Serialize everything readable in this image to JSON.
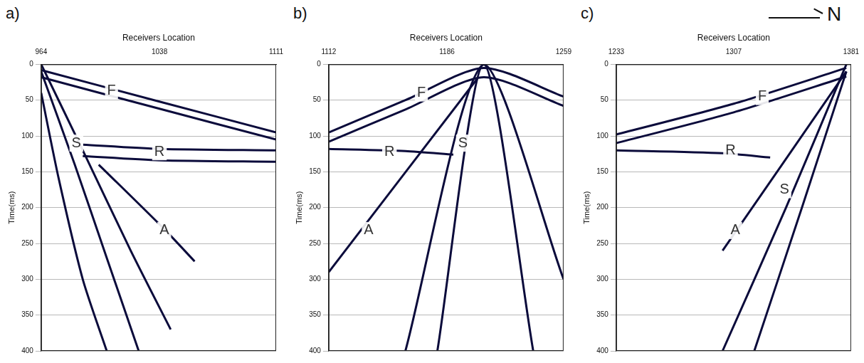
{
  "compass": {
    "label": "N"
  },
  "chart_data": [
    {
      "type": "line",
      "panel_label": "a)",
      "x_label": "Receivers Location",
      "y_label": "Time(ms)",
      "xlim": [
        964,
        1111
      ],
      "xticks": [
        964,
        1038,
        1111
      ],
      "ylim": [
        0,
        400
      ],
      "yticks": [
        0,
        50,
        100,
        150,
        200,
        250,
        300,
        350,
        400
      ],
      "grid": "y",
      "series": [
        {
          "color": "#0b0b3b",
          "x": [
            964,
            1038,
            1111
          ],
          "values": [
            8,
            52,
            95
          ]
        },
        {
          "color": "#0b0b3b",
          "x": [
            964,
            1038,
            1111
          ],
          "values": [
            18,
            62,
            105
          ]
        },
        {
          "color": "#0b0b3b",
          "x": [
            964,
            990,
            1020,
            1045
          ],
          "values": [
            0,
            120,
            260,
            370
          ]
        },
        {
          "color": "#0b0b3b",
          "x": [
            964,
            985,
            1005,
            1025
          ],
          "values": [
            10,
            140,
            270,
            400
          ]
        },
        {
          "color": "#0b0b3b",
          "x": [
            964,
            975,
            990,
            1005
          ],
          "values": [
            40,
            160,
            300,
            400
          ]
        },
        {
          "color": "#0b0b3b",
          "x": [
            990,
            1038,
            1111
          ],
          "values": [
            112,
            118,
            120
          ]
        },
        {
          "color": "#0b0b3b",
          "x": [
            990,
            1038,
            1111
          ],
          "values": [
            128,
            134,
            136
          ]
        },
        {
          "color": "#0b0b3b",
          "x": [
            1000,
            1041,
            1060
          ],
          "values": [
            140,
            230,
            275
          ]
        }
      ],
      "annotations": [
        {
          "text": "F",
          "x": 1008,
          "y": 37
        },
        {
          "text": "S",
          "x": 986,
          "y": 110
        },
        {
          "text": "R",
          "x": 1038,
          "y": 122
        },
        {
          "text": "A",
          "x": 1041,
          "y": 232
        }
      ]
    },
    {
      "type": "line",
      "panel_label": "b)",
      "x_label": "Receivers Location",
      "y_label": "Time(ms)",
      "xlim": [
        1112,
        1259
      ],
      "xticks": [
        1112,
        1186,
        1259
      ],
      "ylim": [
        0,
        400
      ],
      "yticks": [
        0,
        50,
        100,
        150,
        200,
        250,
        300,
        350,
        400
      ],
      "grid": "y",
      "series": [
        {
          "color": "#0b0b3b",
          "x": [
            1112,
            1160,
            1209,
            1259
          ],
          "values": [
            95,
            50,
            5,
            45
          ]
        },
        {
          "color": "#0b0b3b",
          "x": [
            1112,
            1160,
            1209,
            1259
          ],
          "values": [
            108,
            63,
            18,
            58
          ]
        },
        {
          "color": "#0b0b3b",
          "x": [
            1160,
            1209,
            1259
          ],
          "values": [
            400,
            0,
            300
          ]
        },
        {
          "color": "#0b0b3b",
          "x": [
            1180,
            1209,
            1240
          ],
          "values": [
            400,
            0,
            400
          ]
        },
        {
          "color": "#0b0b3b",
          "x": [
            1112,
            1160,
            1190
          ],
          "values": [
            118,
            121,
            126
          ]
        },
        {
          "color": "#0b0b3b",
          "x": [
            1112,
            1205
          ],
          "values": [
            290,
            20
          ]
        }
      ],
      "annotations": [
        {
          "text": "F",
          "x": 1170,
          "y": 40
        },
        {
          "text": "R",
          "x": 1150,
          "y": 122
        },
        {
          "text": "S",
          "x": 1196,
          "y": 110
        },
        {
          "text": "A",
          "x": 1137,
          "y": 232
        }
      ]
    },
    {
      "type": "line",
      "panel_label": "c)",
      "x_label": "Receivers Location",
      "y_label": "Time(ms)",
      "xlim": [
        1233,
        1381
      ],
      "xticks": [
        1233,
        1307,
        1381
      ],
      "ylim": [
        0,
        400
      ],
      "yticks": [
        0,
        50,
        100,
        150,
        200,
        250,
        300,
        350,
        400
      ],
      "grid": "y",
      "series": [
        {
          "color": "#0b0b3b",
          "x": [
            1233,
            1307,
            1378
          ],
          "values": [
            98,
            55,
            5
          ]
        },
        {
          "color": "#0b0b3b",
          "x": [
            1233,
            1307,
            1378
          ],
          "values": [
            110,
            67,
            17
          ]
        },
        {
          "color": "#0b0b3b",
          "x": [
            1300,
            1340,
            1378
          ],
          "values": [
            400,
            200,
            0
          ]
        },
        {
          "color": "#0b0b3b",
          "x": [
            1320,
            1350,
            1378
          ],
          "values": [
            400,
            200,
            10
          ]
        },
        {
          "color": "#0b0b3b",
          "x": [
            1233,
            1300,
            1330
          ],
          "values": [
            120,
            124,
            130
          ]
        },
        {
          "color": "#0b0b3b",
          "x": [
            1300,
            1378
          ],
          "values": [
            260,
            10
          ]
        }
      ],
      "annotations": [
        {
          "text": "F",
          "x": 1325,
          "y": 45
        },
        {
          "text": "R",
          "x": 1305,
          "y": 120
        },
        {
          "text": "S",
          "x": 1339,
          "y": 175
        },
        {
          "text": "A",
          "x": 1308,
          "y": 232
        }
      ]
    }
  ]
}
